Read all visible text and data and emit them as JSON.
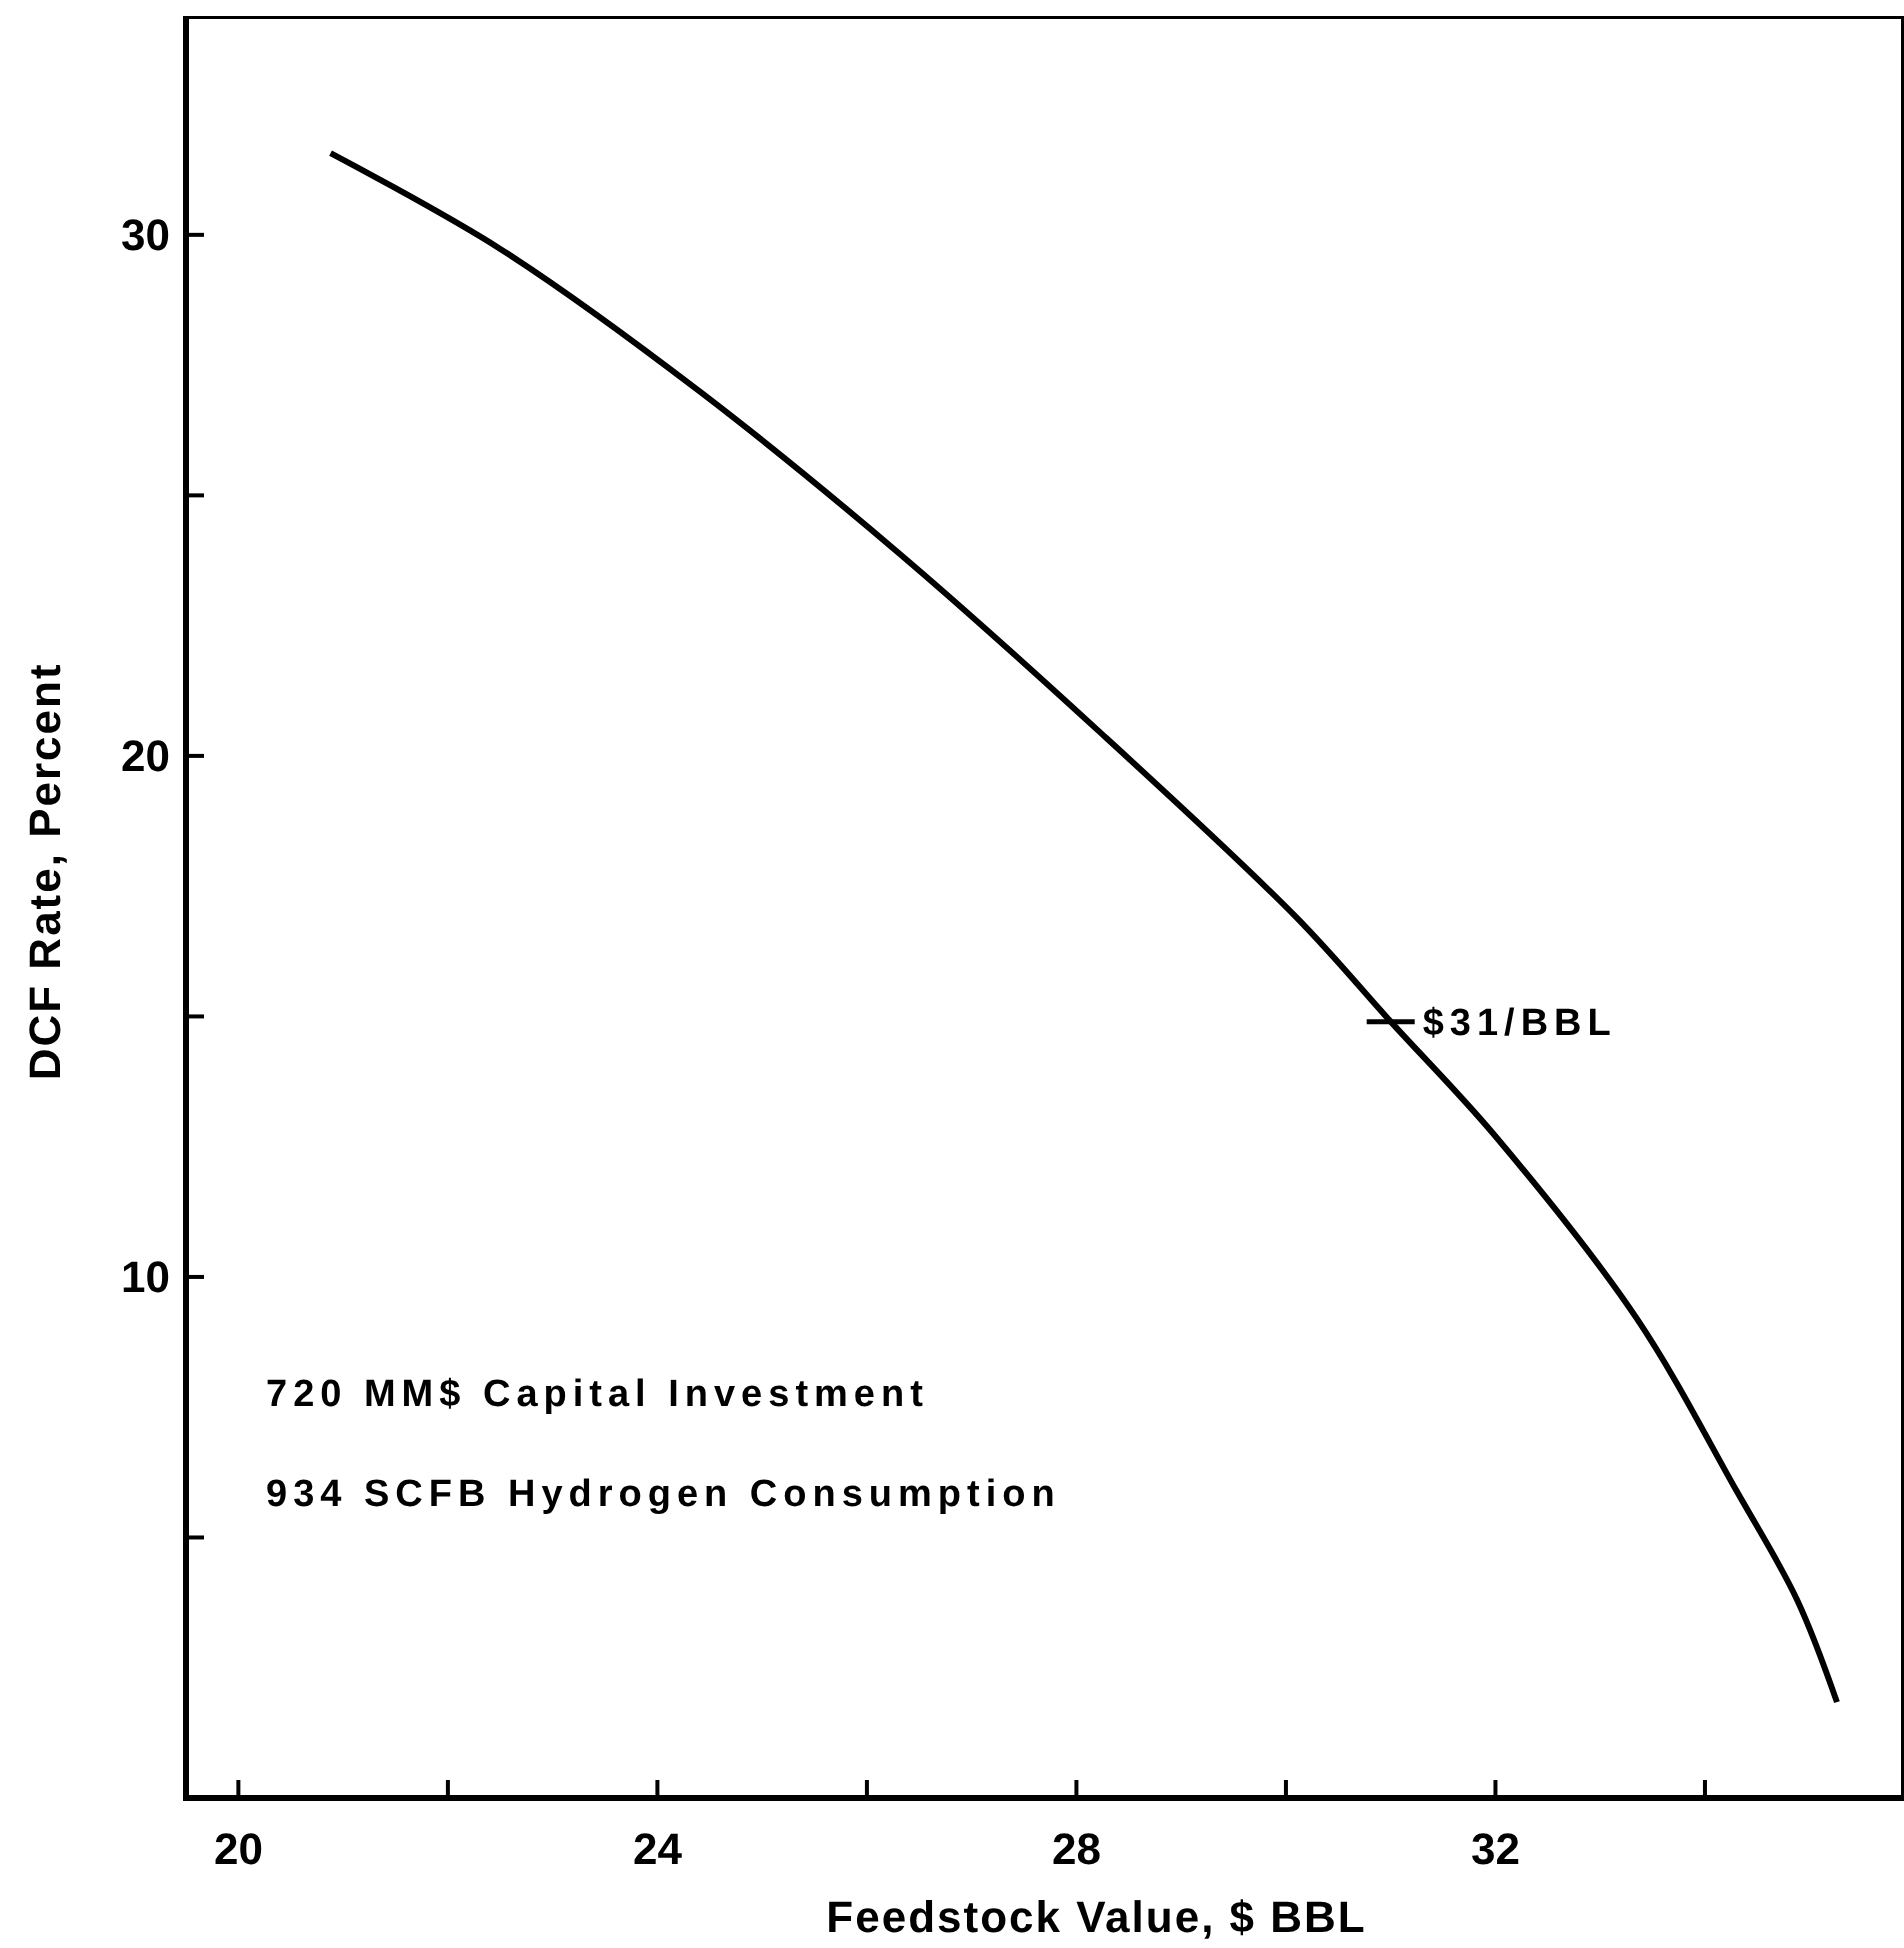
{
  "chart_data": {
    "type": "line",
    "xlabel": "Feedstock Value, $ BBL",
    "ylabel": "DCF Rate, Percent",
    "xlim": [
      19.5,
      35.9
    ],
    "ylim": [
      0,
      34.2
    ],
    "xticks": [
      20,
      {
        "value": 22,
        "label": null
      },
      24,
      {
        "value": 26,
        "label": null
      },
      28,
      {
        "value": 30,
        "label": null
      },
      32,
      {
        "value": 34,
        "label": null
      }
    ],
    "yticks": [
      {
        "value": 5,
        "label": null
      },
      10,
      {
        "value": 15,
        "label": null
      },
      20,
      {
        "value": 25,
        "label": null
      },
      30
    ],
    "grid": false,
    "marker": "none",
    "line_style": "solid",
    "series": [
      {
        "color": "#000000",
        "x": [
          20.88,
          22.5,
          24.4,
          26.3,
          28.2,
          30.1,
          31.0,
          32.0,
          33.35,
          34.3,
          34.88,
          35.26
        ],
        "values": [
          31.57,
          29.73,
          27.0,
          23.9,
          20.5,
          16.9,
          14.9,
          12.7,
          9.2,
          5.9,
          3.8,
          1.84
        ]
      }
    ],
    "annotations": [
      {
        "text": "$31/BBL",
        "x": 31,
        "y": 14.9
      },
      "720 MM$ Capital Investment",
      "934 SCFB Hydrogen Consumption"
    ]
  }
}
